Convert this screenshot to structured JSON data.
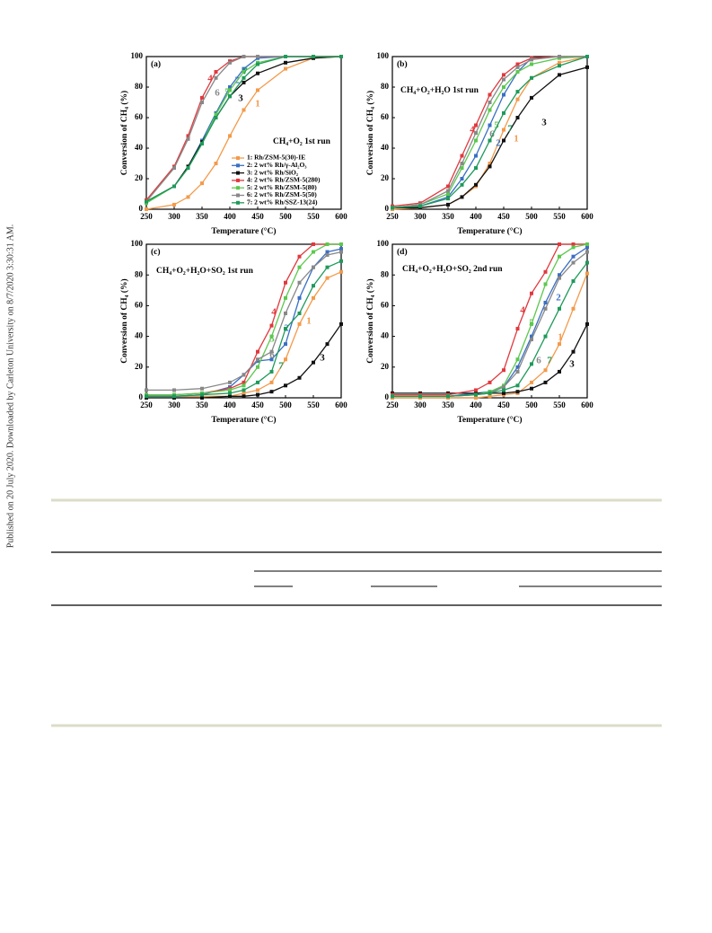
{
  "side_note": "Published on 20 July 2020. Downloaded by Carleton University on 8/7/2020 3:30:31 AM.",
  "chart_data": [
    {
      "type": "line",
      "panel": "(a)",
      "annotation": "CH₄+O₂ 1st run",
      "xlabel": "Temperature (°C)",
      "ylabel": "Conversion of CH₄ (%)",
      "x": [
        250,
        300,
        325,
        350,
        375,
        400,
        425,
        450,
        500,
        550,
        600
      ],
      "xlim": [
        250,
        600
      ],
      "xticks": [
        250,
        300,
        350,
        400,
        450,
        500,
        550,
        600
      ],
      "ylim": [
        0,
        100
      ],
      "yticks": [
        0,
        20,
        40,
        60,
        80,
        100
      ],
      "legend": "lower right",
      "series": [
        {
          "name": "1: Rh/ZSM-5(30)-IE",
          "label": "1",
          "color": "#f39a4a",
          "values": [
            0,
            3,
            8,
            17,
            30,
            48,
            65,
            78,
            92,
            99,
            100
          ]
        },
        {
          "name": "2: 2 wt% Rh/γ-Al₂O₃",
          "label": "2",
          "color": "#3a6fc4",
          "values": [
            5,
            15,
            28,
            45,
            63,
            80,
            92,
            99,
            100,
            100,
            100
          ]
        },
        {
          "name": "3: 2 wt% Rh/SiO₂",
          "label": "3",
          "color": "#111111",
          "values": [
            5,
            15,
            28,
            44,
            60,
            74,
            83,
            89,
            96,
            99,
            100
          ]
        },
        {
          "name": "4: 2 wt% Rh/ZSM-5(280)",
          "label": "4",
          "color": "#e0393e",
          "values": [
            6,
            28,
            48,
            73,
            90,
            97,
            100,
            100,
            100,
            100,
            100
          ]
        },
        {
          "name": "5: 2 wt% Rh/ZSM-5(80)",
          "label": "5",
          "color": "#5cc84f",
          "values": [
            4,
            15,
            27,
            43,
            62,
            78,
            90,
            96,
            100,
            100,
            100
          ]
        },
        {
          "name": "6: 2 wt% Rh/ZSM-5(50)",
          "label": "6",
          "color": "#888888",
          "values": [
            5,
            27,
            46,
            70,
            86,
            96,
            100,
            100,
            100,
            100,
            100
          ]
        },
        {
          "name": "7: 2 wt% Rh/SSZ-13(24)",
          "label": "7",
          "color": "#1e9a5a",
          "values": [
            5,
            15,
            27,
            43,
            60,
            74,
            86,
            95,
            100,
            100,
            100
          ]
        }
      ]
    },
    {
      "type": "line",
      "panel": "(b)",
      "annotation": "CH₄+O₂+H₂O 1st run",
      "xlabel": "Temperature (°C)",
      "ylabel": "Conversion of CH₄ (%)",
      "x": [
        250,
        300,
        350,
        375,
        400,
        425,
        450,
        475,
        500,
        550,
        600
      ],
      "xlim": [
        250,
        600
      ],
      "xticks": [
        250,
        300,
        350,
        400,
        450,
        500,
        550,
        600
      ],
      "ylim": [
        0,
        100
      ],
      "yticks": [
        0,
        20,
        40,
        60,
        80,
        100
      ],
      "series": [
        {
          "label": "1",
          "color": "#f39a4a",
          "values": [
            0,
            1,
            3,
            8,
            15,
            30,
            52,
            72,
            86,
            96,
            100
          ]
        },
        {
          "label": "2",
          "color": "#3a6fc4",
          "values": [
            1,
            2,
            8,
            20,
            35,
            55,
            75,
            90,
            99,
            100,
            100
          ]
        },
        {
          "label": "3",
          "color": "#111111",
          "values": [
            1,
            1,
            3,
            8,
            16,
            28,
            45,
            60,
            73,
            88,
            93
          ]
        },
        {
          "label": "4",
          "color": "#e0393e",
          "values": [
            2,
            4,
            15,
            35,
            55,
            75,
            88,
            95,
            99,
            100,
            100
          ]
        },
        {
          "label": "5",
          "color": "#5cc84f",
          "values": [
            1,
            3,
            10,
            27,
            45,
            65,
            80,
            90,
            95,
            99,
            100
          ]
        },
        {
          "label": "6",
          "color": "#888888",
          "values": [
            1,
            3,
            12,
            30,
            50,
            70,
            85,
            93,
            98,
            100,
            100
          ]
        },
        {
          "label": "7",
          "color": "#1e9a5a",
          "values": [
            1,
            2,
            7,
            16,
            27,
            45,
            63,
            77,
            86,
            94,
            100
          ]
        }
      ]
    },
    {
      "type": "line",
      "panel": "(c)",
      "annotation": "CH₄+O₂+H₂O+SO₂ 1st run",
      "xlabel": "Temperature (°C)",
      "ylabel": "Conversion of CH₄ (%)",
      "x": [
        250,
        300,
        350,
        400,
        425,
        450,
        475,
        500,
        525,
        550,
        575,
        600
      ],
      "xlim": [
        250,
        600
      ],
      "xticks": [
        250,
        300,
        350,
        400,
        450,
        500,
        550,
        600
      ],
      "ylim": [
        0,
        100
      ],
      "yticks": [
        0,
        20,
        40,
        60,
        80,
        100
      ],
      "series": [
        {
          "label": "1",
          "color": "#f39a4a",
          "values": [
            1,
            1,
            1,
            1,
            3,
            5,
            10,
            25,
            48,
            65,
            78,
            82
          ]
        },
        {
          "label": "2",
          "color": "#3a6fc4",
          "values": [
            1,
            1,
            2,
            7,
            15,
            24,
            25,
            35,
            65,
            85,
            95,
            97
          ]
        },
        {
          "label": "3",
          "color": "#111111",
          "values": [
            0,
            0,
            0,
            1,
            1,
            2,
            4,
            8,
            13,
            23,
            35,
            48
          ]
        },
        {
          "label": "4",
          "color": "#e0393e",
          "values": [
            2,
            2,
            3,
            6,
            10,
            30,
            47,
            75,
            92,
            100,
            100,
            100
          ]
        },
        {
          "label": "5",
          "color": "#5cc84f",
          "values": [
            2,
            2,
            3,
            5,
            8,
            20,
            40,
            65,
            85,
            95,
            100,
            100
          ]
        },
        {
          "label": "6",
          "color": "#888888",
          "values": [
            5,
            5,
            6,
            10,
            15,
            25,
            30,
            55,
            75,
            85,
            93,
            95
          ]
        },
        {
          "label": "7",
          "color": "#1e9a5a",
          "values": [
            1,
            1,
            2,
            3,
            5,
            10,
            17,
            45,
            55,
            73,
            85,
            89
          ]
        }
      ]
    },
    {
      "type": "line",
      "panel": "(d)",
      "annotation": "CH₄+O₂+H₂O+SO₂ 2nd run",
      "xlabel": "Temperature (°C)",
      "ylabel": "Conversion of CH₄ (%)",
      "x": [
        250,
        300,
        350,
        400,
        425,
        450,
        475,
        500,
        525,
        550,
        575,
        600
      ],
      "xlim": [
        250,
        600
      ],
      "xticks": [
        250,
        300,
        350,
        400,
        450,
        500,
        550,
        600
      ],
      "ylim": [
        0,
        100
      ],
      "yticks": [
        0,
        20,
        40,
        60,
        80,
        100
      ],
      "series": [
        {
          "label": "1",
          "color": "#f39a4a",
          "values": [
            0,
            0,
            0,
            0,
            1,
            2,
            3,
            10,
            18,
            35,
            58,
            81
          ]
        },
        {
          "label": "2",
          "color": "#3a6fc4",
          "values": [
            1,
            1,
            1,
            3,
            4,
            7,
            20,
            40,
            62,
            80,
            92,
            98
          ]
        },
        {
          "label": "3",
          "color": "#111111",
          "values": [
            3,
            3,
            3,
            3,
            3,
            3,
            4,
            6,
            10,
            17,
            30,
            48
          ]
        },
        {
          "label": "4",
          "color": "#e0393e",
          "values": [
            2,
            2,
            2,
            5,
            10,
            18,
            45,
            68,
            82,
            100,
            100,
            100
          ]
        },
        {
          "label": "5",
          "color": "#5cc84f",
          "values": [
            1,
            1,
            1,
            2,
            4,
            8,
            25,
            48,
            74,
            92,
            98,
            100
          ]
        },
        {
          "label": "6",
          "color": "#888888",
          "values": [
            1,
            1,
            1,
            2,
            3,
            7,
            17,
            38,
            58,
            78,
            88,
            95
          ]
        },
        {
          "label": "7",
          "color": "#1e9a5a",
          "values": [
            1,
            1,
            1,
            2,
            3,
            5,
            8,
            22,
            40,
            58,
            76,
            88
          ]
        }
      ]
    }
  ]
}
